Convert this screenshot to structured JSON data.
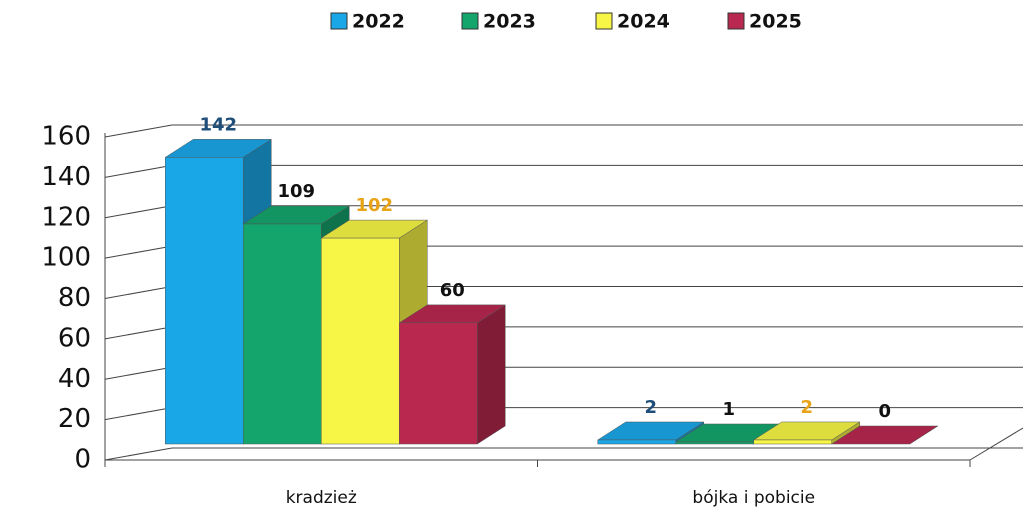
{
  "chart_data": {
    "type": "bar3d",
    "categories": [
      "kradzież",
      "bójka i pobicie"
    ],
    "series": [
      {
        "name": "2022",
        "color": "#1aa7e8",
        "label_color": "#1f4e79",
        "values": [
          142,
          2
        ]
      },
      {
        "name": "2023",
        "color": "#14a56c",
        "label_color": "#111111",
        "values": [
          109,
          1
        ]
      },
      {
        "name": "2024",
        "color": "#f7f545",
        "label_color": "#e8a317",
        "values": [
          102,
          2
        ]
      },
      {
        "name": "2025",
        "color": "#b8284f",
        "label_color": "#111111",
        "values": [
          60,
          0
        ]
      }
    ],
    "ylim": [
      0,
      160
    ],
    "yticks": [
      0,
      20,
      40,
      60,
      80,
      100,
      120,
      140,
      160
    ],
    "grid": true,
    "legend": "top"
  }
}
